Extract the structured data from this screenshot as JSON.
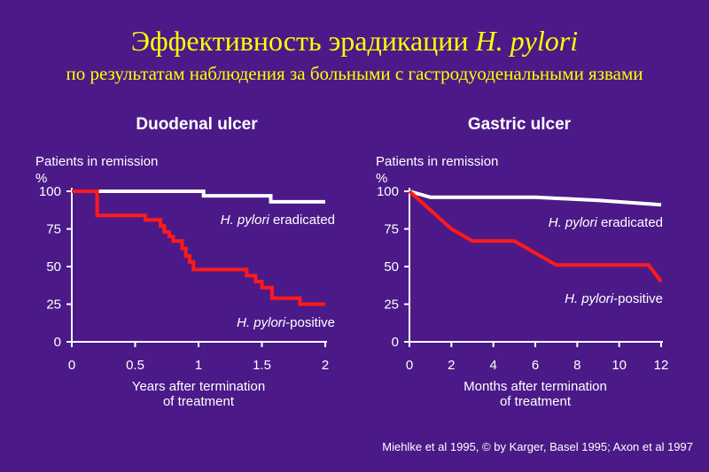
{
  "slide": {
    "title_main": "Эффективность эрадикации ",
    "title_italic": "H. pylori",
    "subtitle": "по результатам наблюдения за больными с гастродуоденальными язвами",
    "source": "Miehlke et al 1995, © by Karger, Basel 1995; Axon et al 1997"
  },
  "colors": {
    "background": "#4b1a88",
    "title": "#ffff00",
    "eradicated": "#ffffff",
    "positive": "#ff1a1a",
    "axis": "#ffffff"
  },
  "chart_data": [
    {
      "type": "line",
      "step": true,
      "title": "Duodenal ulcer",
      "ylabel": "Patients in remission",
      "yunit": "%",
      "xlabel": [
        "Years after termination",
        "of treatment"
      ],
      "xlim": [
        0,
        2
      ],
      "ylim": [
        0,
        100
      ],
      "xticks": [
        0,
        0.5,
        1,
        1.5,
        2
      ],
      "xtick_labels": [
        "0",
        "0.5",
        "1",
        "1.5",
        "2"
      ],
      "yticks": [
        0,
        25,
        50,
        75,
        100
      ],
      "series": [
        {
          "name": "eradicated",
          "label_italic": "H. pylori",
          "label_rest": " eradicated",
          "color": "#ffffff",
          "x": [
            0,
            1.04,
            1.04,
            1.57,
            1.57,
            2.0
          ],
          "y": [
            100,
            100,
            97,
            97,
            93,
            93
          ]
        },
        {
          "name": "positive",
          "label_italic": "H. pylori",
          "label_rest": "-positive",
          "color": "#ff1a1a",
          "x": [
            0,
            0.2,
            0.2,
            0.58,
            0.58,
            0.7,
            0.7,
            0.73,
            0.73,
            0.77,
            0.77,
            0.8,
            0.8,
            0.87,
            0.87,
            0.9,
            0.9,
            0.93,
            0.93,
            0.96,
            0.96,
            1.38,
            1.38,
            1.45,
            1.45,
            1.5,
            1.5,
            1.58,
            1.58,
            1.8,
            1.8,
            2.0
          ],
          "y": [
            100,
            100,
            84,
            84,
            81,
            81,
            77,
            77,
            73,
            73,
            70,
            70,
            67,
            67,
            62,
            62,
            57,
            57,
            53,
            53,
            48,
            48,
            44,
            44,
            40,
            40,
            36,
            36,
            29,
            29,
            25,
            25
          ]
        }
      ]
    },
    {
      "type": "line",
      "step": false,
      "title": "Gastric ulcer",
      "ylabel": "Patients in remission",
      "yunit": "%",
      "xlabel": [
        "Months after termination",
        "of treatment"
      ],
      "xlim": [
        0,
        12
      ],
      "ylim": [
        0,
        100
      ],
      "xticks": [
        0,
        2,
        4,
        6,
        8,
        10,
        12
      ],
      "xtick_labels": [
        "0",
        "2",
        "4",
        "6",
        "8",
        "10",
        "12"
      ],
      "yticks": [
        0,
        25,
        50,
        75,
        100
      ],
      "series": [
        {
          "name": "eradicated",
          "label_italic": "H. pylori",
          "label_rest": " eradicated",
          "color": "#ffffff",
          "x": [
            0,
            1,
            6,
            9,
            12
          ],
          "y": [
            100,
            96,
            96,
            94,
            91
          ]
        },
        {
          "name": "positive",
          "label_italic": "H. pylori",
          "label_rest": "-positive",
          "color": "#ff1a1a",
          "x": [
            0,
            2,
            3,
            5,
            7,
            11.4,
            12
          ],
          "y": [
            100,
            75,
            67,
            67,
            51,
            51,
            40
          ]
        }
      ]
    }
  ]
}
